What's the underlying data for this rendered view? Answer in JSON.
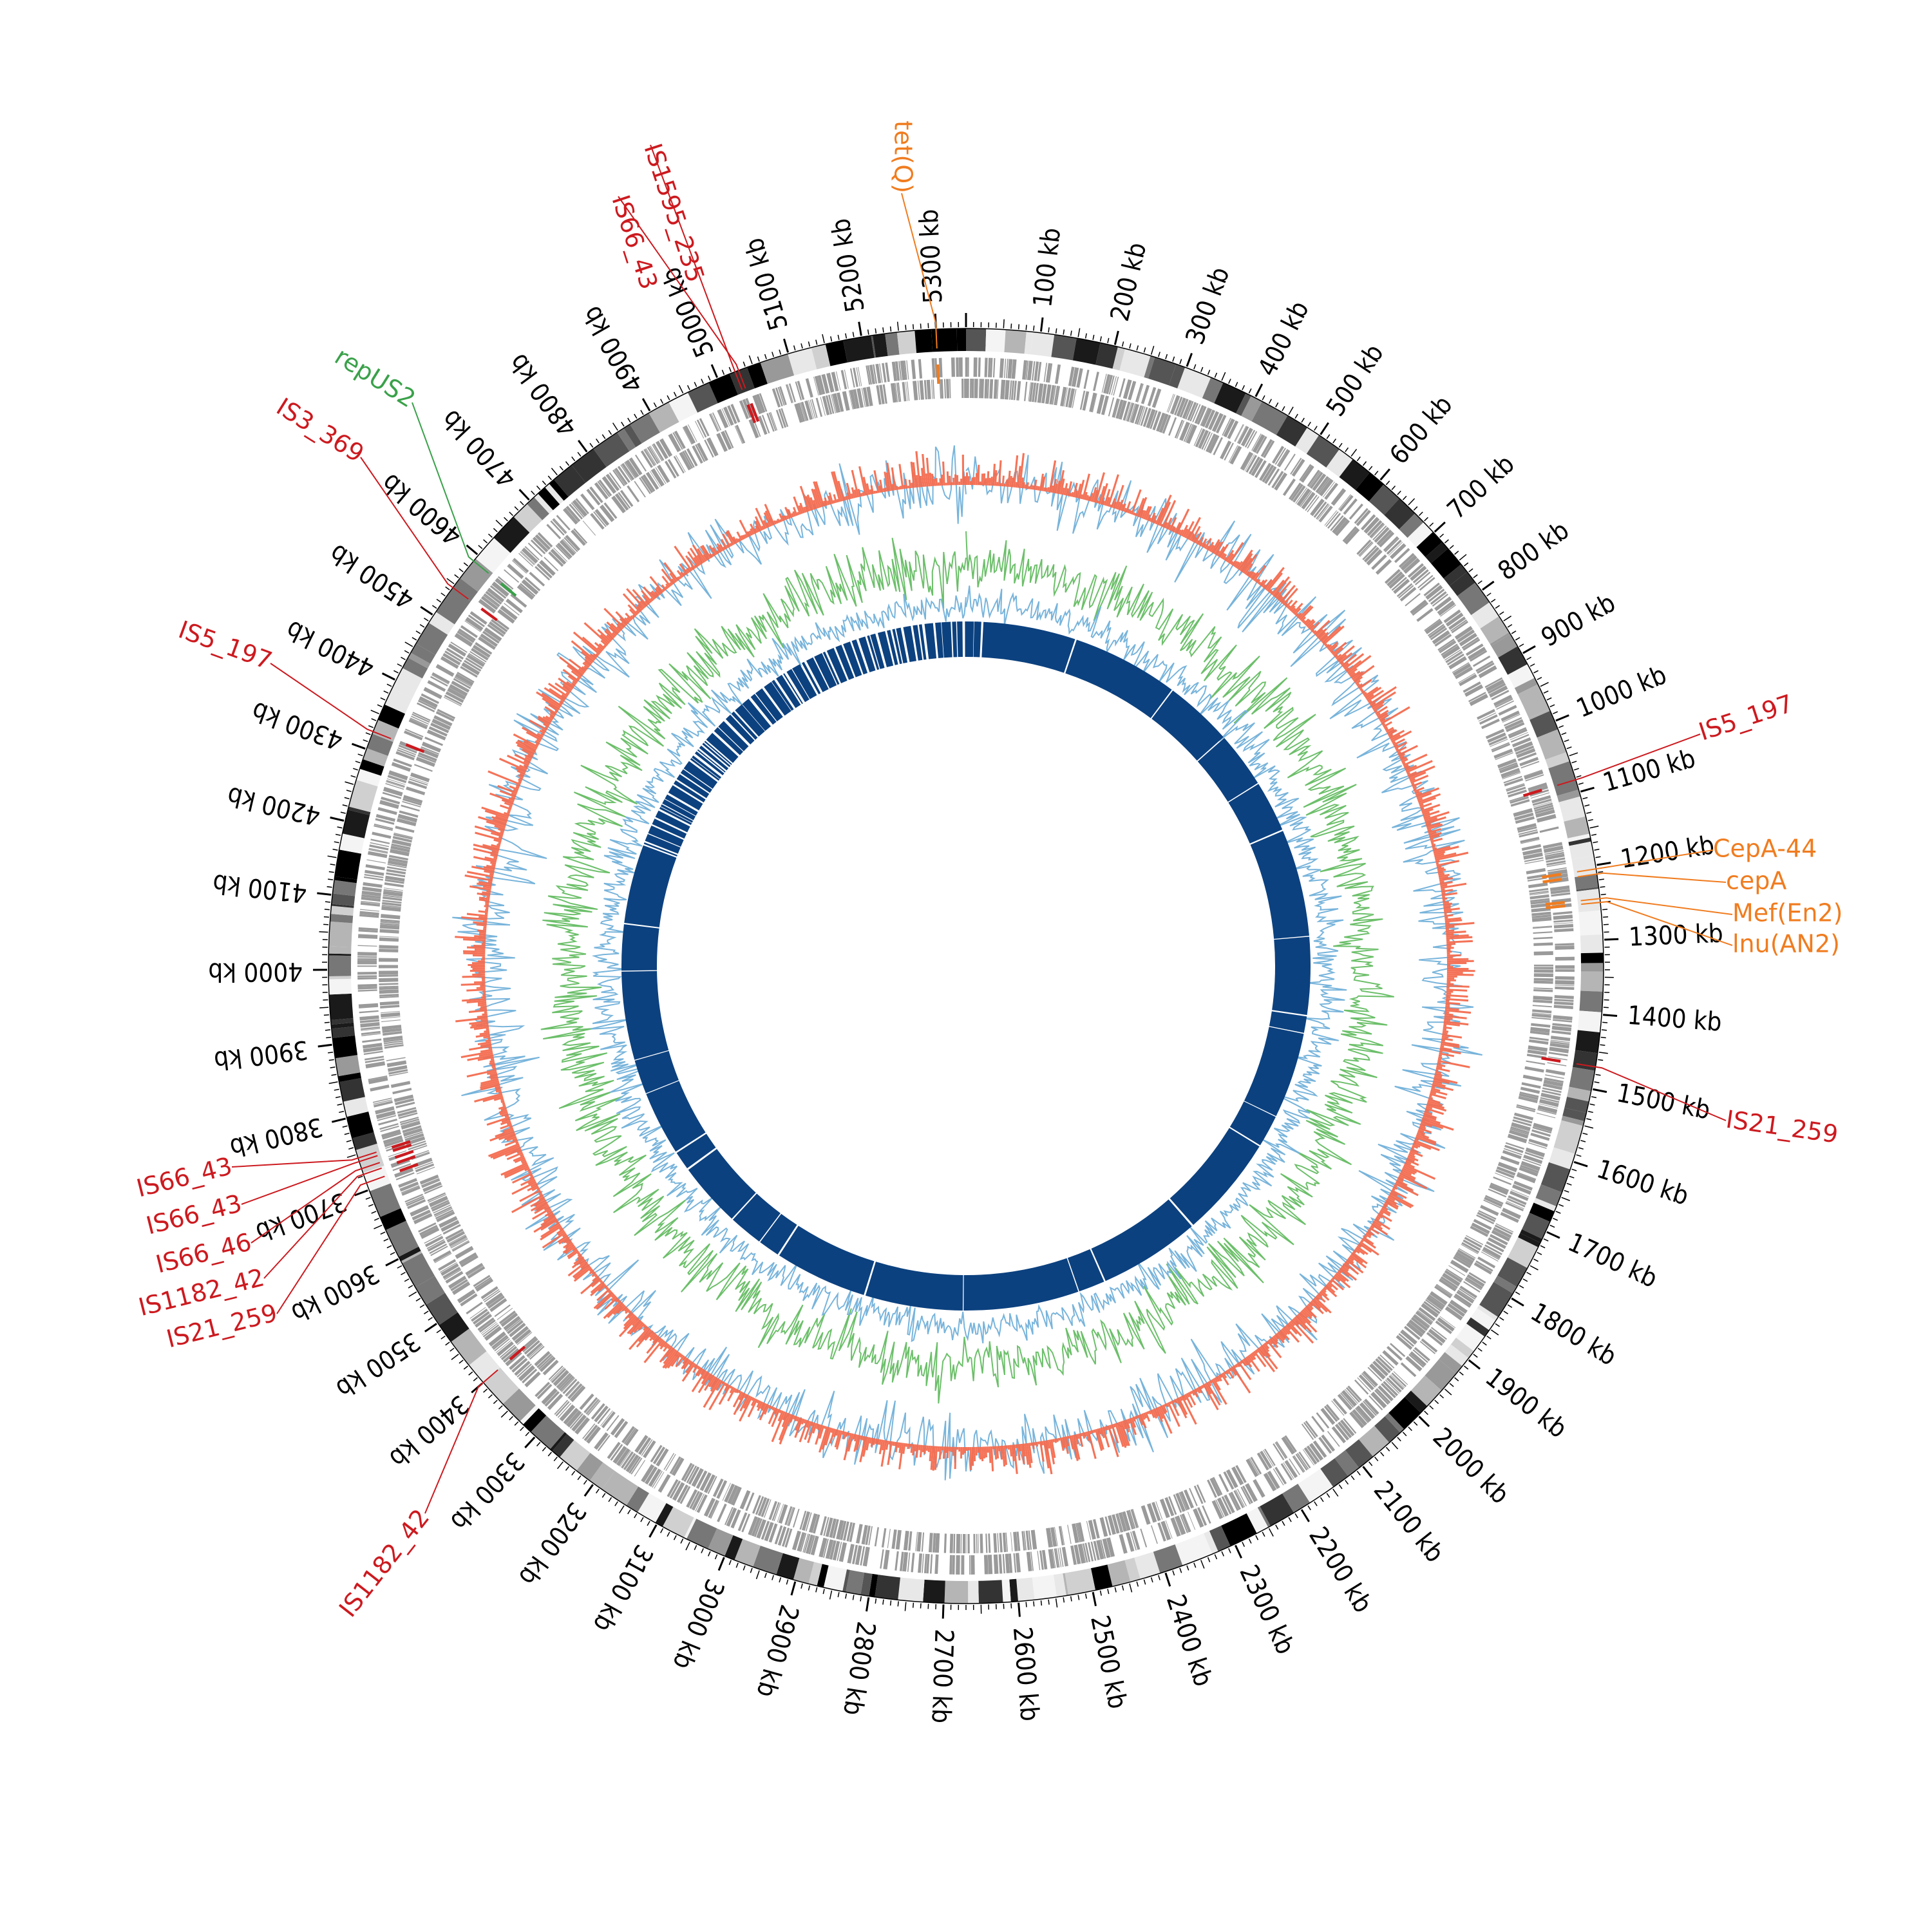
{
  "genome": {
    "total_kb": 5340,
    "tick_labels": [
      "100 kb",
      "200 kb",
      "300 kb",
      "400 kb",
      "500 kb",
      "600 kb",
      "700 kb",
      "800 kb",
      "900 kb",
      "1000 kb",
      "1100 kb",
      "1200 kb",
      "1300 kb",
      "1400 kb",
      "1500 kb",
      "1600 kb",
      "1700 kb",
      "1800 kb",
      "1900 kb",
      "2000 kb",
      "2100 kb",
      "2200 kb",
      "2300 kb",
      "2400 kb",
      "2500 kb",
      "2600 kb",
      "2700 kb",
      "2800 kb",
      "2900 kb",
      "3000 kb",
      "3100 kb",
      "3200 kb",
      "3300 kb",
      "3400 kb",
      "3500 kb",
      "3600 kb",
      "3700 kb",
      "3800 kb",
      "3900 kb",
      "4000 kb",
      "4100 kb",
      "4200 kb",
      "4300 kb",
      "4400 kb",
      "4500 kb",
      "4600 kb",
      "4700 kb",
      "4800 kb",
      "4900 kb",
      "5000 kb",
      "5100 kb",
      "5200 kb",
      "5300 kb"
    ]
  },
  "colors": {
    "is_element": "#cc1a1f",
    "resistance_gene": "#f07c1f",
    "plasmid_rep": "#3aa14a",
    "gc_content": "#78b4db",
    "gc_skew_neg": "#f36c4f",
    "gc_skew_pos": "#6cbf6a",
    "contig_ring": "#0c417f",
    "gene_ring": "#9a9a9a"
  },
  "features": [
    {
      "label": "IS1595_235",
      "kb": 5025,
      "type": "is_element"
    },
    {
      "label": "IS66_43",
      "kb": 5030,
      "type": "is_element"
    },
    {
      "label": "tet(Q)",
      "kb": 5300,
      "type": "resistance_gene"
    },
    {
      "label": "repUS2",
      "kb": 4590,
      "type": "plasmid_rep"
    },
    {
      "label": "IS3_369",
      "kb": 4545,
      "type": "is_element"
    },
    {
      "label": "IS5_197",
      "kb": 4325,
      "type": "is_element"
    },
    {
      "label": "IS5_197",
      "kb": 1083,
      "type": "is_element"
    },
    {
      "label": "CepA-44",
      "kb": 1205,
      "type": "resistance_gene"
    },
    {
      "label": "cepA",
      "kb": 1212,
      "type": "resistance_gene"
    },
    {
      "label": "Mef(En2)",
      "kb": 1245,
      "type": "resistance_gene"
    },
    {
      "label": "lnu(AN2)",
      "kb": 1250,
      "type": "resistance_gene"
    },
    {
      "label": "IS21_259",
      "kb": 1470,
      "type": "is_element"
    },
    {
      "label": "IS66_43",
      "kb": 3745,
      "type": "is_element"
    },
    {
      "label": "IS66_43",
      "kb": 3740,
      "type": "is_element"
    },
    {
      "label": "IS66_46",
      "kb": 3730,
      "type": "is_element"
    },
    {
      "label": "IS1182_42",
      "kb": 3722,
      "type": "is_element"
    },
    {
      "label": "IS21_259",
      "kb": 3710,
      "type": "is_element"
    },
    {
      "label": "IS1182_42",
      "kb": 3400,
      "type": "is_element"
    }
  ]
}
